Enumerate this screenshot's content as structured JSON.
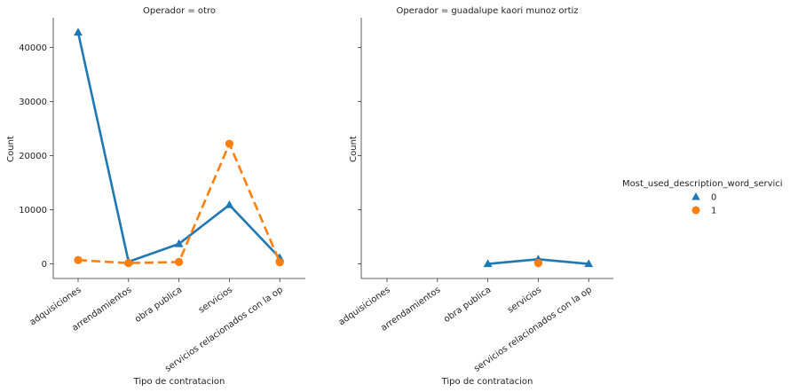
{
  "chart_data": {
    "type": "line",
    "categories": [
      "adquisiciones",
      "arrendamientos",
      "obra publica",
      "servicios",
      "servicios relacionados con la op"
    ],
    "xlabel": "Tipo de contratacion",
    "ylabel": "Count",
    "ylim": [
      -2700,
      45500
    ],
    "yticks": [
      0,
      10000,
      20000,
      30000,
      40000
    ],
    "grid": false,
    "legend": {
      "title": "Most_used_description_word_servici",
      "placement": "right",
      "entries": [
        {
          "label": "0",
          "color": "#1f77b4",
          "marker": "triangle"
        },
        {
          "label": "1",
          "color": "#ff7f0e",
          "marker": "circle"
        }
      ]
    },
    "panels": [
      {
        "title": "Operador = otro",
        "series": [
          {
            "name": "0",
            "color": "#1f77b4",
            "marker": "triangle",
            "dash": "solid",
            "values": [
              42800,
              400,
              3700,
              10900,
              1100
            ]
          },
          {
            "name": "1",
            "color": "#ff7f0e",
            "marker": "circle",
            "dash": "dashed",
            "values": [
              700,
              150,
              350,
              22200,
              300
            ]
          }
        ]
      },
      {
        "title": "Operador = guadalupe kaori munoz ortiz",
        "series": [
          {
            "name": "0",
            "color": "#1f77b4",
            "marker": "triangle",
            "dash": "solid",
            "values": [
              null,
              null,
              0,
              850,
              0
            ]
          },
          {
            "name": "1",
            "color": "#ff7f0e",
            "marker": "circle",
            "dash": "dashed",
            "values": [
              null,
              null,
              null,
              150,
              null
            ]
          }
        ]
      }
    ]
  }
}
